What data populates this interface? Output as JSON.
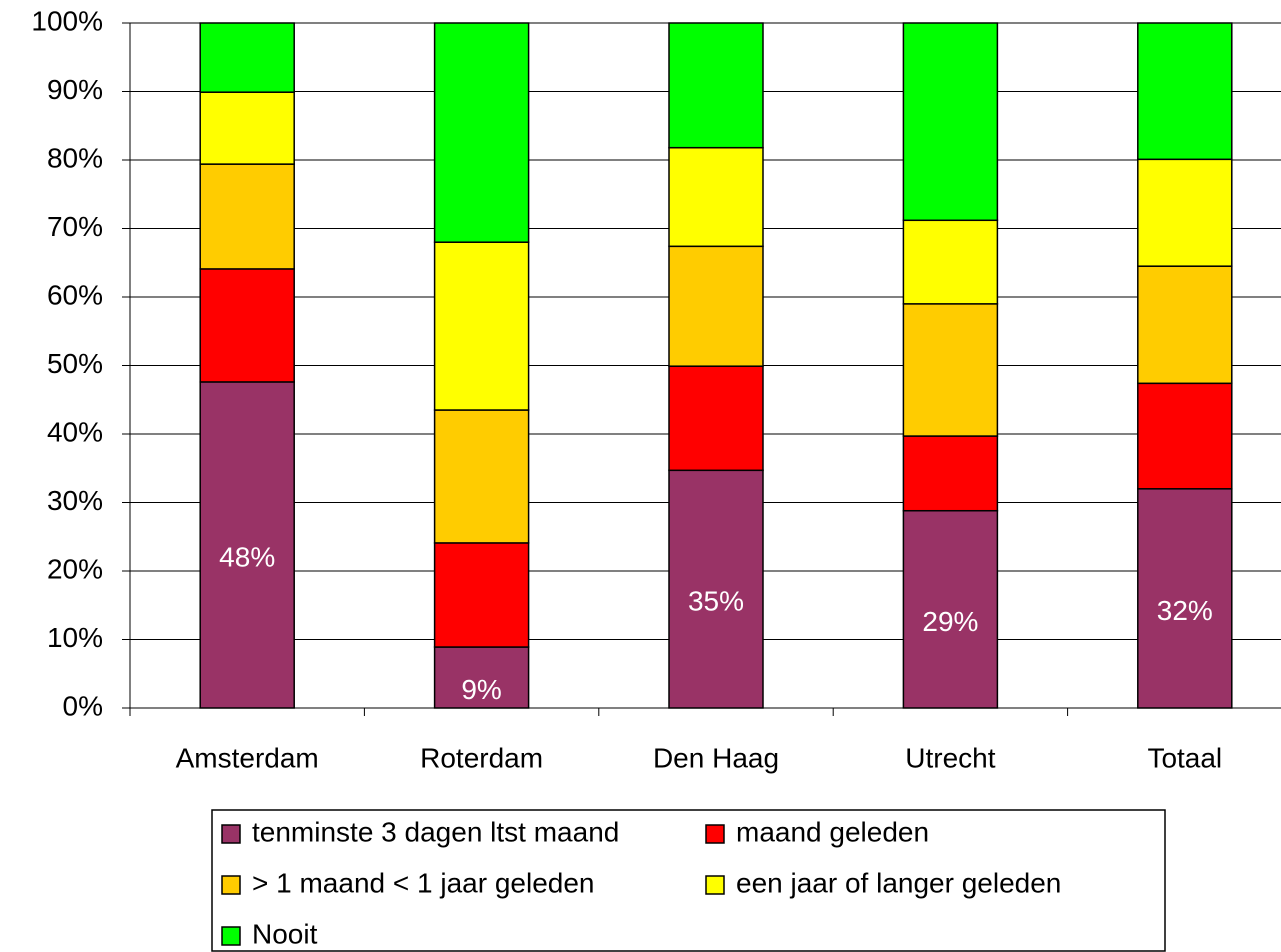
{
  "chart_data": {
    "type": "stacked_bar",
    "categories": [
      "Amsterdam",
      "Roterdam",
      "Den Haag",
      "Utrecht",
      "Totaal"
    ],
    "series": [
      {
        "name": "tenminste 3 dagen ltst maand",
        "color": "#993366",
        "values": [
          47.6,
          8.9,
          34.7,
          28.8,
          32.0
        ],
        "value_labels": [
          "48%",
          "9%",
          "35%",
          "29%",
          "32%"
        ]
      },
      {
        "name": "maand geleden",
        "color": "#ff0000",
        "values": [
          16.5,
          15.2,
          15.2,
          10.9,
          15.4
        ]
      },
      {
        "name": "> 1 maand < 1 jaar geleden",
        "color": "#ffcc00",
        "values": [
          15.3,
          19.4,
          17.5,
          19.3,
          17.1
        ]
      },
      {
        "name": "een jaar of langer geleden",
        "color": "#ffff00",
        "values": [
          10.5,
          24.5,
          14.4,
          12.2,
          15.6
        ]
      },
      {
        "name": "Nooit",
        "color": "#00ff00",
        "values": [
          10.1,
          32.0,
          18.2,
          28.8,
          19.9
        ]
      }
    ],
    "ylim": [
      0,
      100
    ],
    "yticks": [
      {
        "value": 0,
        "label": "0%"
      },
      {
        "value": 10,
        "label": "10%"
      },
      {
        "value": 20,
        "label": "20%"
      },
      {
        "value": 30,
        "label": "30%"
      },
      {
        "value": 40,
        "label": "40%"
      },
      {
        "value": 50,
        "label": "50%"
      },
      {
        "value": 60,
        "label": "60%"
      },
      {
        "value": 70,
        "label": "70%"
      },
      {
        "value": 80,
        "label": "80%"
      },
      {
        "value": 90,
        "label": "90%"
      },
      {
        "value": 100,
        "label": "100%"
      }
    ],
    "grid": true,
    "legend": "bottom"
  }
}
